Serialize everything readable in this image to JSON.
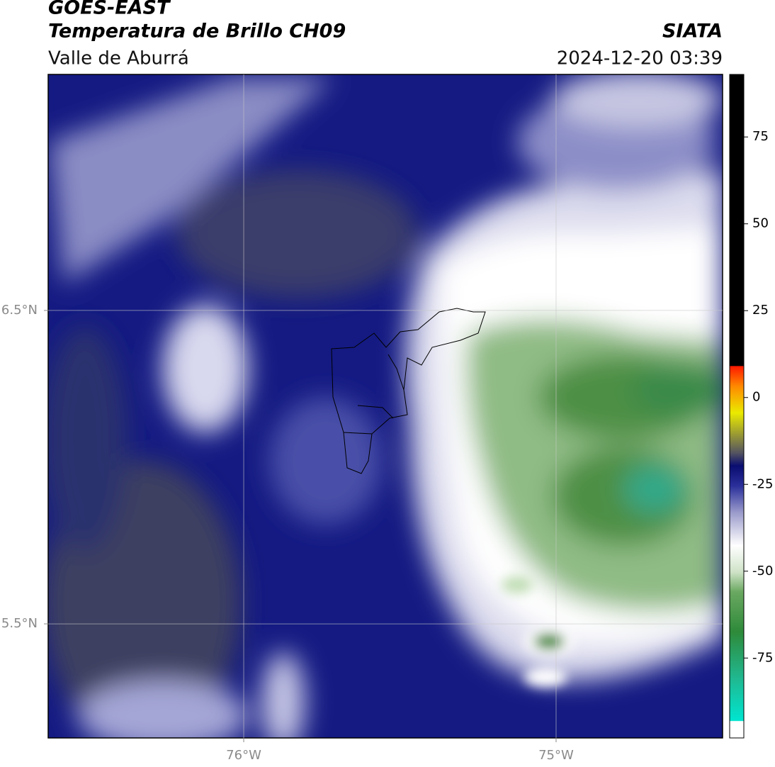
{
  "header": {
    "title": "GOES-EAST",
    "subtitle": "Temperatura de Brillo CH09",
    "region": "Valle de Aburrá",
    "source": "SIATA",
    "datetime": "2024-12-20 03:39"
  },
  "map": {
    "xlim": [
      -76.626,
      -74.467
    ],
    "ylim": [
      5.136,
      7.253
    ],
    "xticks": [
      {
        "value": -76,
        "label": "76°W"
      },
      {
        "value": -75,
        "label": "75°W"
      }
    ],
    "yticks": [
      {
        "value": 6.5,
        "label": "6.5°N"
      },
      {
        "value": 5.5,
        "label": "5.5°N"
      }
    ],
    "grid": true
  },
  "colorbar": {
    "range": [
      -98,
      93
    ],
    "ticks": [
      75,
      50,
      25,
      0,
      -25,
      -50,
      -75
    ]
  }
}
